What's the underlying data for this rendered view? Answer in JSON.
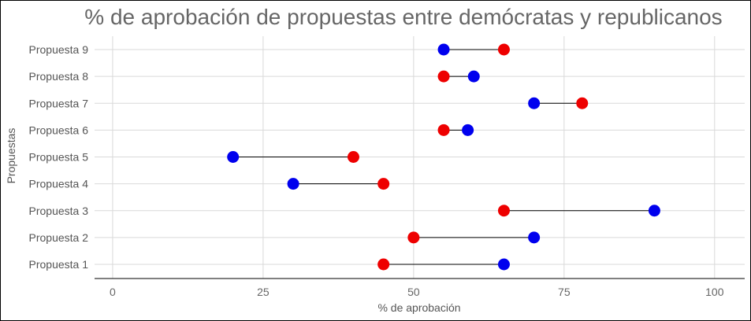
{
  "chart_data": {
    "type": "dumbbell",
    "title": "% de aprobación de propuestas entre demócratas y republicanos",
    "xlabel": "% de aprobación",
    "ylabel": "Propuestas",
    "xlim": [
      -3,
      105
    ],
    "x_ticks": [
      0,
      25,
      50,
      75,
      100
    ],
    "categories": [
      "Propuesta 1",
      "Propuesta 2",
      "Propuesta 3",
      "Propuesta 4",
      "Propuesta 5",
      "Propuesta 6",
      "Propuesta 7",
      "Propuesta 8",
      "Propuesta 9"
    ],
    "series": [
      {
        "color": "#0000ee",
        "values": [
          65,
          70,
          90,
          30,
          20,
          59,
          70,
          60,
          55
        ]
      },
      {
        "color": "#ee0000",
        "values": [
          45,
          50,
          65,
          45,
          40,
          55,
          78,
          55,
          65
        ]
      }
    ],
    "grid": true,
    "legend": "none"
  }
}
